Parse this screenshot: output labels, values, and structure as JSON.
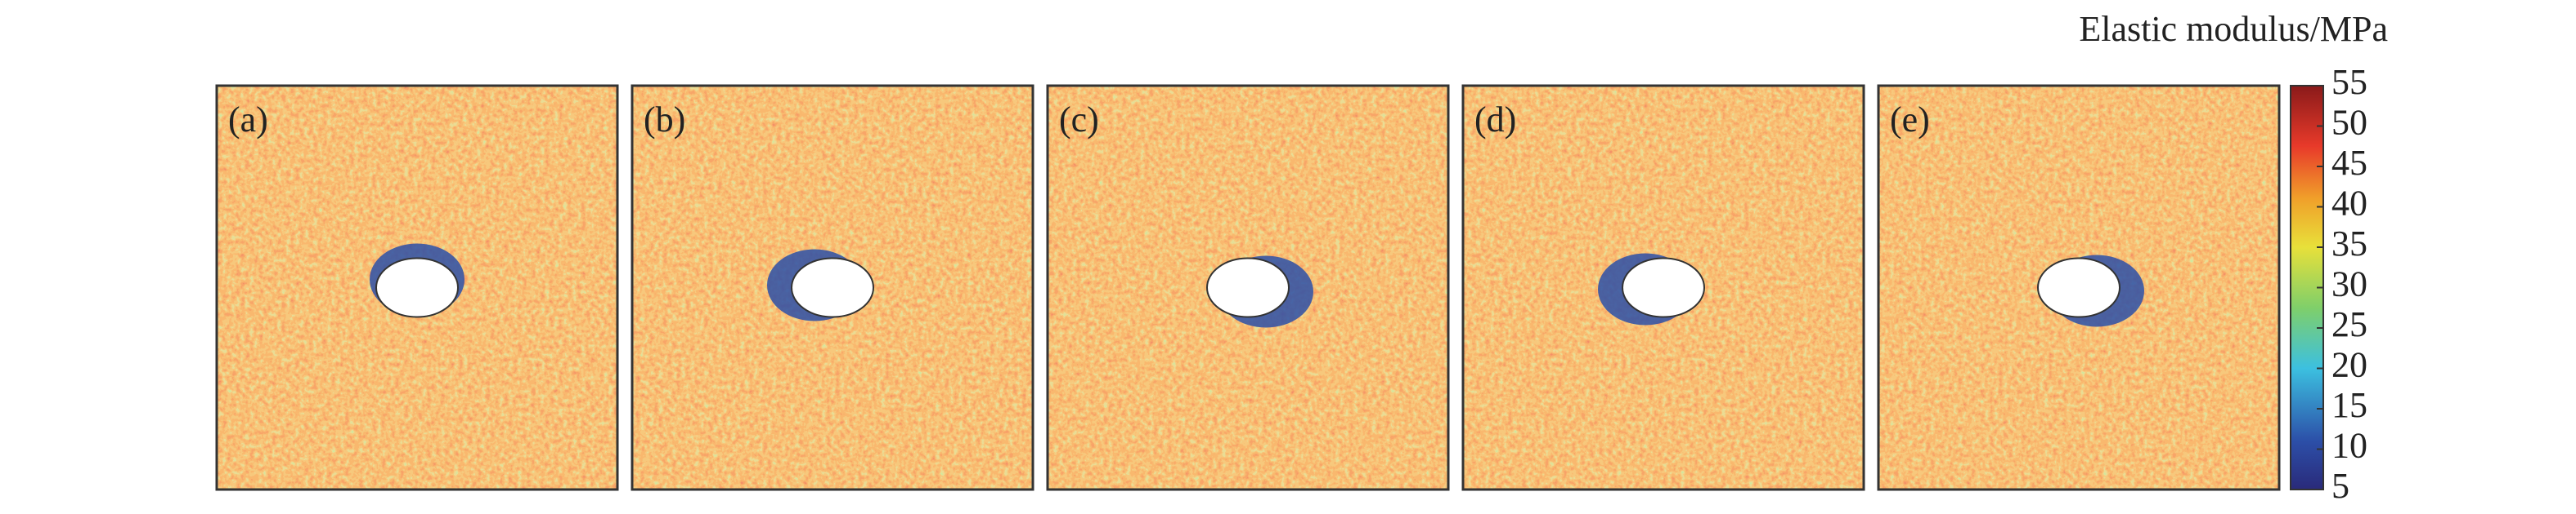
{
  "chart_data": {
    "type": "field",
    "colorbar_label": "Elastic modulus/MPa",
    "panels": [
      "(a)",
      "(b)",
      "(c)",
      "(d)",
      "(e)"
    ],
    "clim": [
      5,
      55
    ],
    "cticks": [
      5,
      10,
      15,
      20,
      25,
      30,
      35,
      40,
      45,
      50,
      55
    ]
  }
}
